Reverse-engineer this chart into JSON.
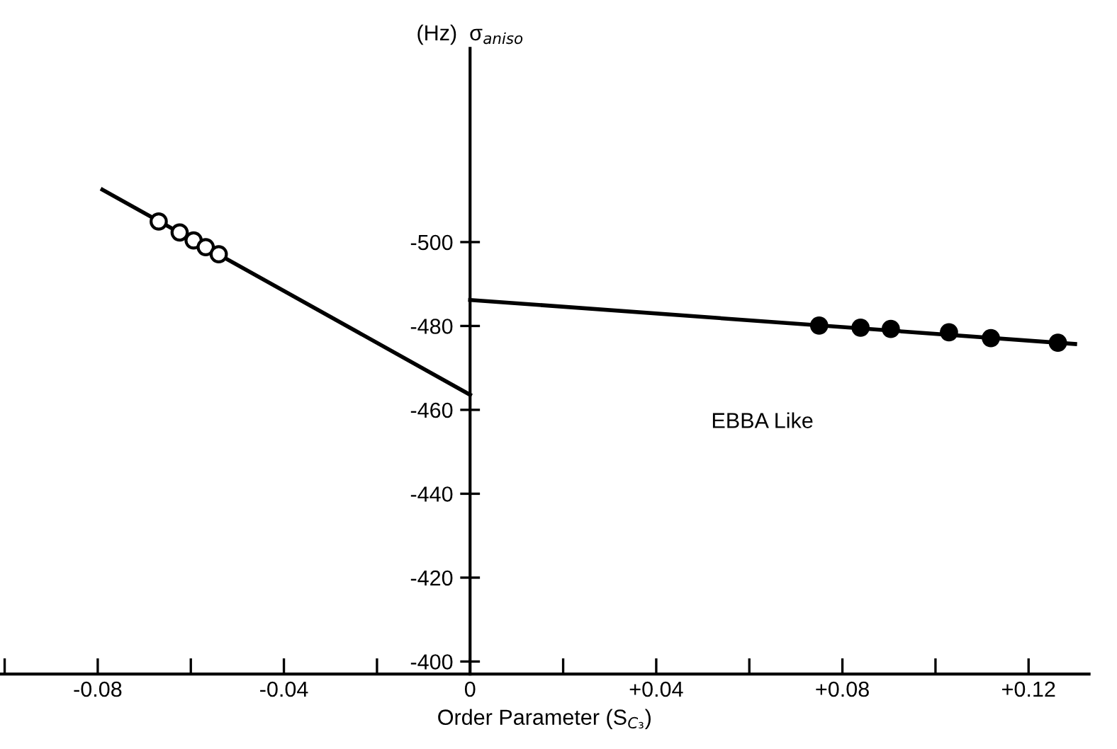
{
  "chart_data": {
    "type": "scatter",
    "xlabel": "Order Parameter (S$_{C₃}$)",
    "ylabel": "(Hz)  σ$_{aniso}$",
    "annotations": [
      "EBBA Like"
    ],
    "xlim": [
      -0.101,
      0.133
    ],
    "xticks": [
      {
        "value": -0.1,
        "label": null
      },
      {
        "value": -0.08,
        "label": "-0.08"
      },
      {
        "value": -0.06,
        "label": null
      },
      {
        "value": -0.04,
        "label": "-0.04"
      },
      {
        "value": -0.02,
        "label": null
      },
      0,
      {
        "value": 0.02,
        "label": null
      },
      {
        "value": 0.04,
        "label": "+0.04"
      },
      {
        "value": 0.06,
        "label": null
      },
      {
        "value": 0.08,
        "label": "+0.08"
      },
      {
        "value": 0.1,
        "label": null
      },
      {
        "value": 0.12,
        "label": "+0.12"
      }
    ],
    "ylim": [
      -397,
      -547
    ],
    "yticks": [
      -400,
      -420,
      -440,
      -460,
      -480,
      -500
    ],
    "grid": false,
    "legend": false,
    "series": [
      {
        "type": "line",
        "color": "#000000",
        "marker": "none",
        "x": [
          -0.079,
          0
        ],
        "values": [
          -512.5,
          -463.6
        ]
      },
      {
        "color": "#ffffff",
        "marker": "circle",
        "x": [
          -0.0669,
          -0.0624,
          -0.0594,
          -0.0568,
          -0.054
        ],
        "values": [
          -504.9,
          -502.3,
          -500.4,
          -498.8,
          -497.1
        ]
      },
      {
        "type": "line",
        "color": "#000000",
        "marker": "none",
        "x": [
          0,
          0.13
        ],
        "values": [
          -486.2,
          -475.7
        ]
      },
      {
        "color": "#000000",
        "marker": "circle",
        "x": [
          0.075,
          0.0839,
          0.0904,
          0.1029,
          0.1119,
          0.1263
        ],
        "values": [
          -480.1,
          -479.6,
          -479.3,
          -478.5,
          -477.1,
          -476.0
        ]
      }
    ]
  }
}
